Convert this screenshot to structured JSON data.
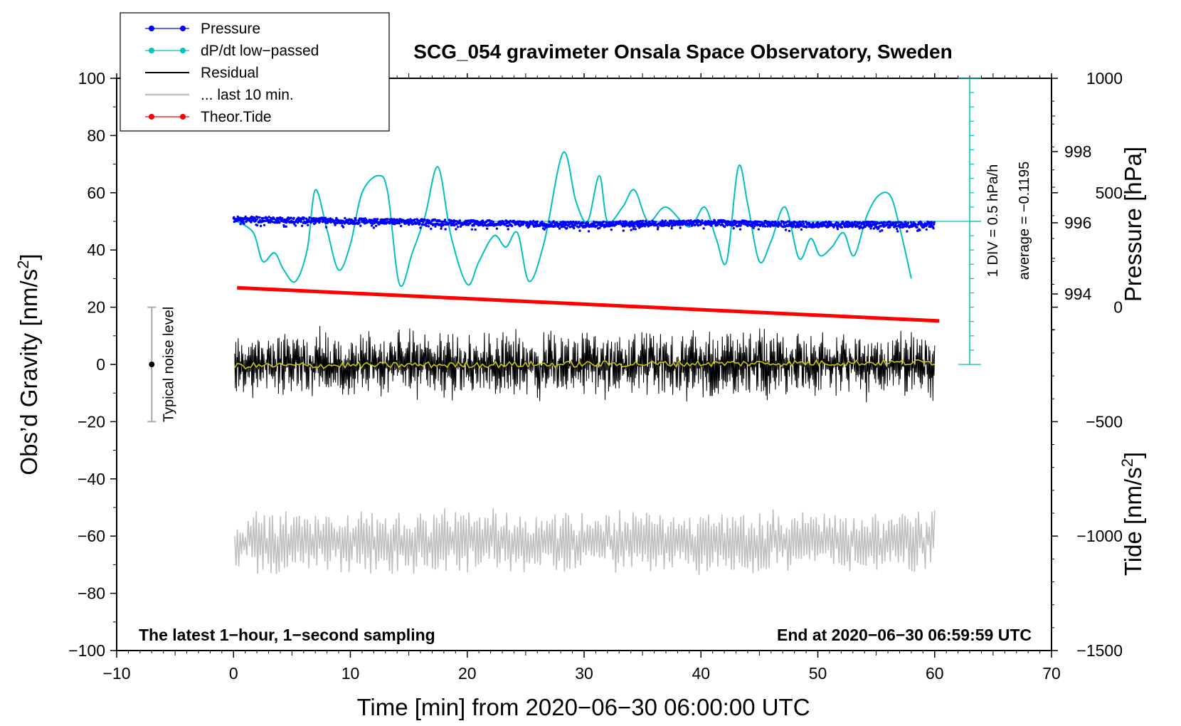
{
  "chart_data": {
    "type": "line",
    "title": "SCG_054 gravimeter Onsala Space Observatory, Sweden",
    "xlabel": "Time [min] from 2020−06−30 06:00:00 UTC",
    "ylabel_left_main": "Obs’d Gravity [nm/s",
    "ylabel_left_sup": "2",
    "ylabel_left_end": "]",
    "ylabel_right_pressure": "Pressure [hPa]",
    "ylabel_right_tide_main": "Tide [nm/s",
    "ylabel_right_tide_sup": "2",
    "ylabel_right_tide_end": "]",
    "xlim": [
      -10,
      70
    ],
    "ylim_gravity": [
      -100,
      100
    ],
    "ylim_tide": [
      -1500,
      1000
    ],
    "x_ticks": [
      "−10",
      "0",
      "10",
      "20",
      "30",
      "40",
      "50",
      "60",
      "70"
    ],
    "x_tick_values": [
      -10,
      0,
      10,
      20,
      30,
      40,
      50,
      60,
      70
    ],
    "gravity_ticks": [
      "100",
      "80",
      "60",
      "40",
      "20",
      "0",
      "−20",
      "−40",
      "−60",
      "−80",
      "−100"
    ],
    "gravity_tick_values": [
      100,
      80,
      60,
      40,
      20,
      0,
      -20,
      -40,
      -60,
      -80,
      -100
    ],
    "pressure_ticks": [
      "998",
      "996",
      "994"
    ],
    "pressure_tick_values": [
      998,
      996,
      994
    ],
    "tide_ticks": [
      "1000",
      "500",
      "0",
      "−500",
      "−1000",
      "−1500"
    ],
    "tide_tick_values": [
      1000,
      500,
      0,
      -500,
      -1000,
      -1500
    ],
    "legend": [
      {
        "label": "Pressure",
        "color": "#0000ff",
        "style": "line-dot"
      },
      {
        "label": "dP/dt low−passed",
        "color": "#00c0c0",
        "style": "line-dot"
      },
      {
        "label": "Residual",
        "color": "#000000",
        "style": "line"
      },
      {
        "label": "... last 10 min.",
        "color": "#c0c0c0",
        "style": "line"
      },
      {
        "label": "Theor.Tide",
        "color": "#ff0000",
        "style": "line-dot"
      }
    ],
    "dpdt_scale_label": "1 DIV = 0.5 hPa/h",
    "dpdt_average_label": "average = −0.1195",
    "noise_label": "Typical noise level",
    "noise_range": [
      -20,
      20
    ],
    "footer_left": "The latest 1−hour, 1−second sampling",
    "footer_right": "End at 2020−06−30 06:59:59 UTC",
    "series": [
      {
        "name": "Pressure",
        "axis": "pressure",
        "color": "#0000ff",
        "x": [
          0,
          10,
          20,
          30,
          40,
          50,
          60
        ],
        "values": [
          996.1,
          996.05,
          996.0,
          995.95,
          996.0,
          995.95,
          995.95
        ],
        "scatter_hpa": 0.08
      },
      {
        "name": "dP/dt low-passed",
        "axis": "gravity",
        "color": "#00c0c0",
        "x": [
          0.3,
          1.7,
          2.5,
          3.5,
          4.3,
          5.3,
          6.3,
          7.0,
          8.0,
          9.0,
          10.0,
          11.0,
          12.4,
          13.2,
          14.2,
          15.3,
          16.4,
          17.5,
          18.6,
          20.0,
          21.0,
          22.3,
          23.3,
          24.3,
          25.3,
          26.6,
          28.2,
          29.3,
          30.3,
          31.3,
          32.0,
          33.3,
          34.3,
          35.5,
          37.0,
          39.0,
          40.3,
          41.3,
          42.2,
          43.2,
          44.0,
          45.0,
          46.0,
          47.2,
          48.4,
          49.4,
          50.2,
          51.2,
          52.2,
          53.1,
          54.2,
          55.2,
          56.2,
          57.0,
          58.0
        ],
        "values": [
          50,
          46,
          36,
          39,
          33,
          29,
          40,
          61,
          47,
          33,
          42,
          60,
          66,
          60,
          28,
          39,
          52,
          69,
          45,
          28,
          36,
          45,
          41,
          46,
          29,
          43,
          74,
          57,
          50,
          66,
          50,
          55,
          61,
          50,
          55,
          48,
          55,
          44,
          36,
          69,
          56,
          36,
          43,
          55,
          37,
          44,
          38,
          41,
          46,
          38,
          52,
          59,
          59,
          48,
          30
        ]
      },
      {
        "name": "Residual",
        "axis": "gravity",
        "color": "#000000",
        "x": [
          0.1,
          60.0
        ],
        "values": [
          0,
          0
        ],
        "noise_amplitude": 13,
        "mean_line_color": "#c8c800"
      },
      {
        "name": "... last 10 min.",
        "axis": "gravity",
        "color": "#c0c0c0",
        "x": [
          0.1,
          60.0
        ],
        "values": [
          -62,
          -62
        ],
        "noise_amplitude": 10
      },
      {
        "name": "Theor.Tide",
        "axis": "tide",
        "color": "#ff0000",
        "x": [
          0.3,
          60.4
        ],
        "values": [
          85,
          -60
        ]
      }
    ]
  }
}
